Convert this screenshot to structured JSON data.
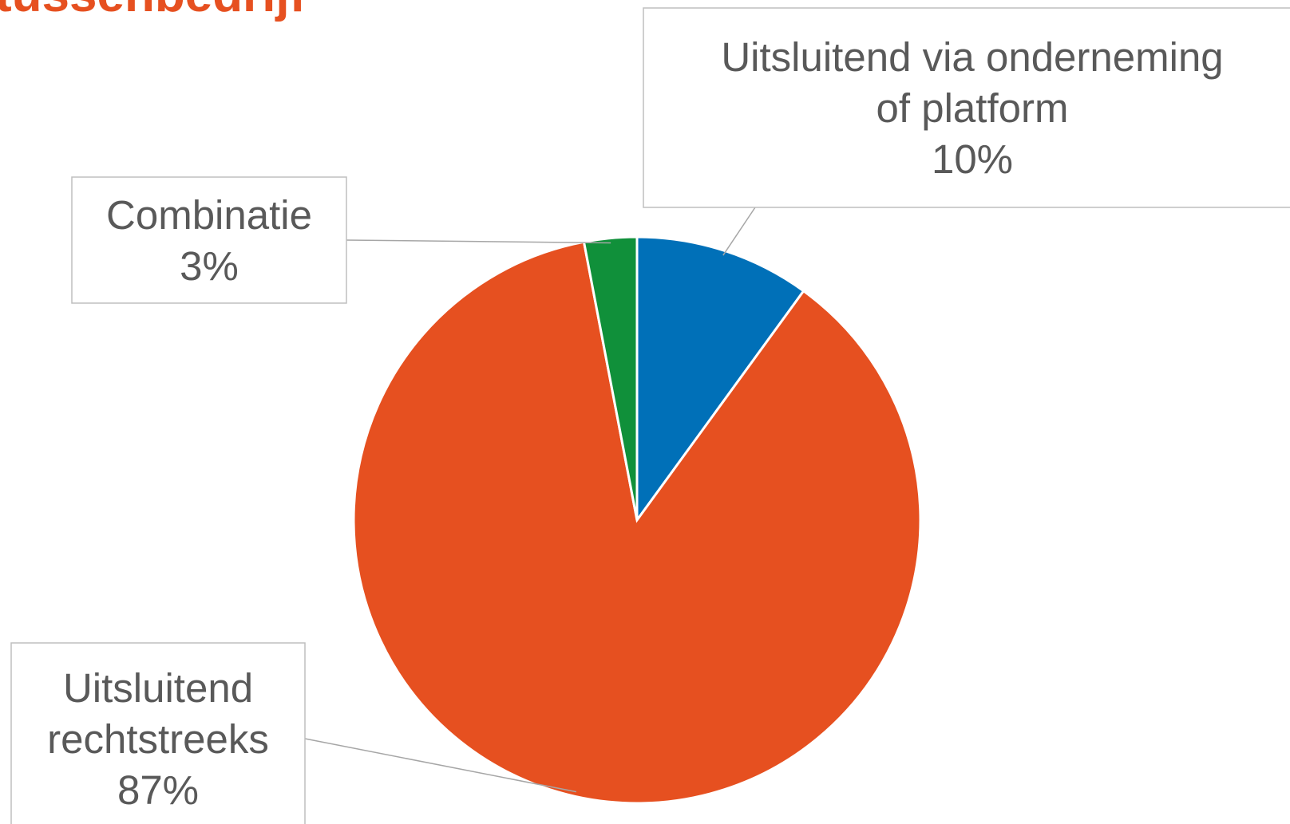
{
  "title": "tussenbedrijf",
  "chart_data": {
    "type": "pie",
    "slices": [
      {
        "label": "Uitsluitend via onderneming of platform",
        "label_lines": [
          "Uitsluitend via onderneming",
          "of platform"
        ],
        "value": 10,
        "value_label": "10%",
        "color": "#0070b8"
      },
      {
        "label": "Uitsluitend rechtstreeks",
        "label_lines": [
          "Uitsluitend",
          "rechtstreeks"
        ],
        "value": 87,
        "value_label": "87%",
        "color": "#e65020"
      },
      {
        "label": "Combinatie",
        "label_lines": [
          "Combinatie"
        ],
        "value": 3,
        "value_label": "3%",
        "color": "#10903a"
      }
    ],
    "start_angle_deg": 0,
    "direction": "clockwise",
    "legend": "none",
    "data_labels": "callouts"
  },
  "colors": {
    "title": "#e65020",
    "label_text": "#595959",
    "callout_border": "#bfbfbf",
    "leader_line": "#a6a6a6"
  }
}
